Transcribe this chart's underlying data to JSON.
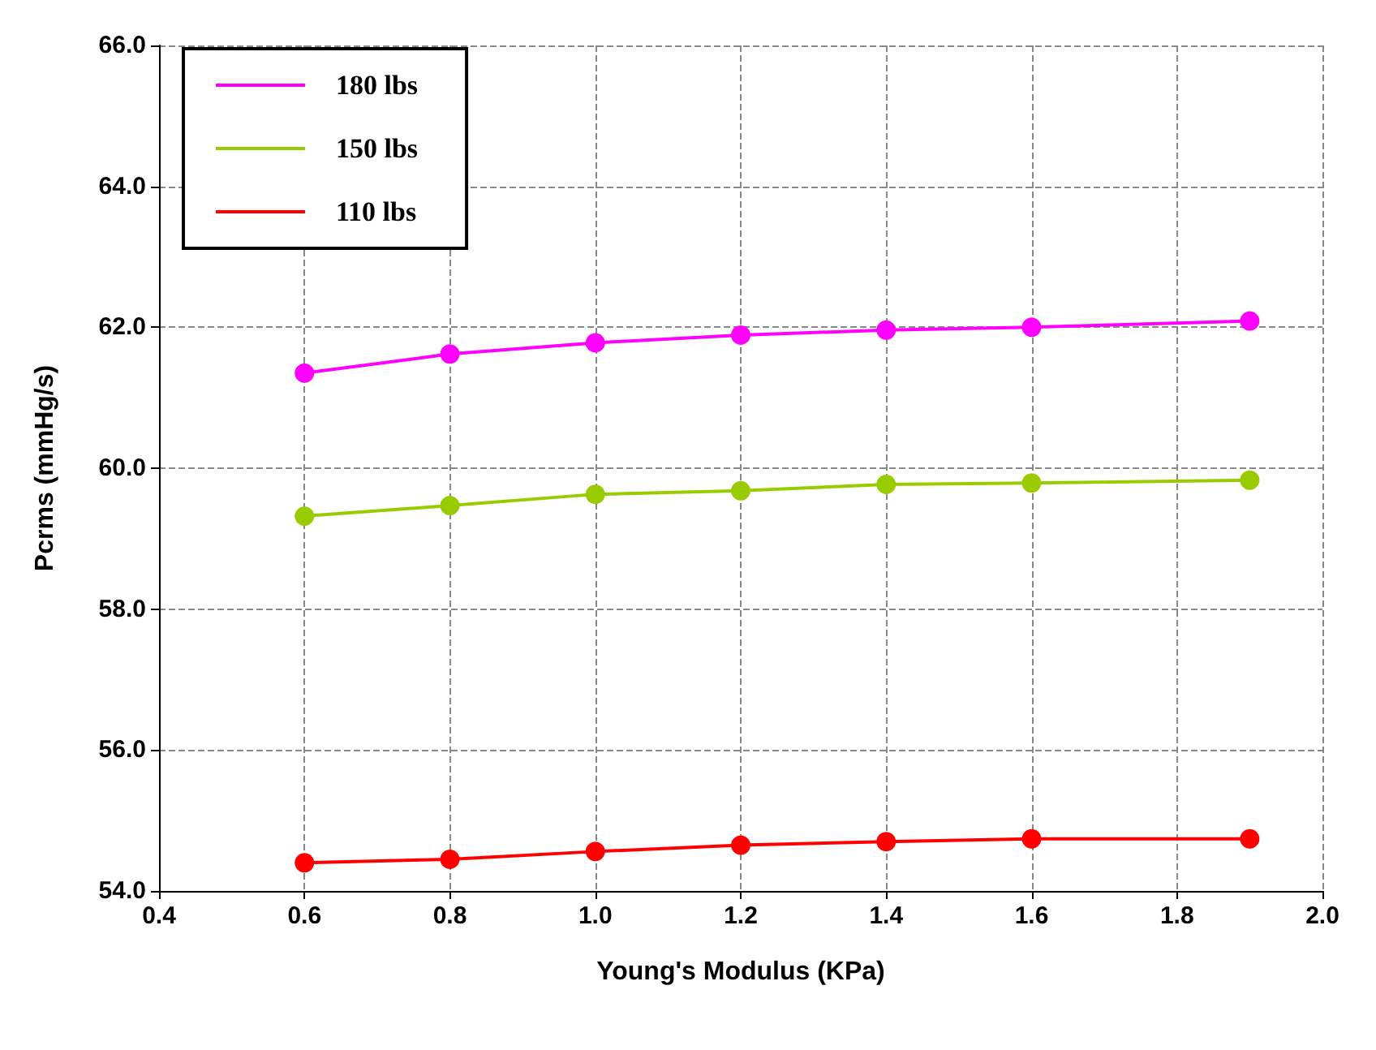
{
  "chart_data": {
    "type": "line",
    "xlabel": "Young's Modulus (KPa)",
    "ylabel": "Pcrms (mmHg/s)",
    "x": [
      0.6,
      0.8,
      1.0,
      1.2,
      1.4,
      1.6,
      1.9
    ],
    "series": [
      {
        "name": "180 lbs",
        "color": "#ff00ff",
        "values": [
          61.35,
          61.62,
          61.78,
          61.89,
          61.96,
          62.0,
          62.09
        ]
      },
      {
        "name": "150 lbs",
        "color": "#99cc00",
        "values": [
          59.32,
          59.47,
          59.63,
          59.68,
          59.77,
          59.79,
          59.83
        ]
      },
      {
        "name": "110 lbs",
        "color": "#ff0000",
        "values": [
          54.4,
          54.45,
          54.56,
          54.65,
          54.7,
          54.74,
          54.74
        ]
      }
    ],
    "xlim": [
      0.4,
      2.0
    ],
    "xticks": [
      0.4,
      0.6,
      0.8,
      {
        "value": 1.0,
        "label": "1.0"
      },
      1.2,
      1.4,
      1.6,
      1.8,
      {
        "value": 2.0,
        "label": "2.0"
      }
    ],
    "ylim": [
      54,
      66
    ],
    "yticks": [
      {
        "value": 54,
        "label": "54.0"
      },
      {
        "value": 56,
        "label": "56.0"
      },
      {
        "value": 58,
        "label": "58.0"
      },
      {
        "value": 60,
        "label": "60.0"
      },
      {
        "value": 62,
        "label": "62.0"
      },
      {
        "value": 64,
        "label": "64.0"
      },
      {
        "value": 66,
        "label": "66.0"
      }
    ],
    "grid": true,
    "legend": "top left",
    "marker": "circle",
    "line_style": "solid"
  }
}
